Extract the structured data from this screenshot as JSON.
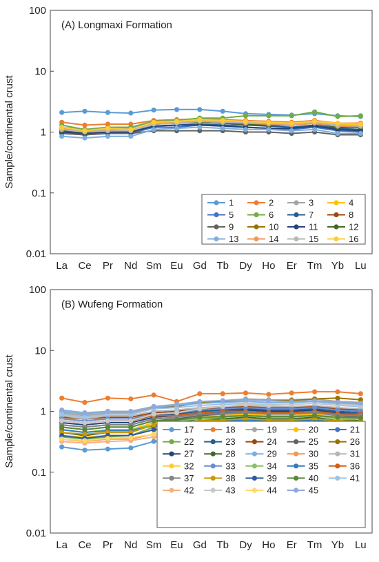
{
  "chart_data": [
    {
      "type": "line",
      "title": "(A) Longmaxi Formation",
      "ylabel": "Sample/continental crust",
      "xlabel": "",
      "yscale": "log",
      "ylim": [
        0.01,
        100
      ],
      "ytick_labels": [
        "0.01",
        "0.1",
        "1",
        "10",
        "100"
      ],
      "categories": [
        "La",
        "Ce",
        "Pr",
        "Nd",
        "Sm",
        "Eu",
        "Gd",
        "Tb",
        "Dy",
        "Ho",
        "Er",
        "Tm",
        "Yb",
        "Lu"
      ],
      "legend_placement": "lower-right",
      "series": [
        {
          "name": "1",
          "color": "#5b9bd5",
          "values": [
            2.1,
            2.2,
            2.1,
            2.05,
            2.3,
            2.35,
            2.35,
            2.2,
            2.0,
            1.95,
            1.9,
            2.0,
            1.85,
            1.8
          ]
        },
        {
          "name": "2",
          "color": "#ed7d31",
          "values": [
            1.45,
            1.3,
            1.35,
            1.35,
            1.55,
            1.6,
            1.65,
            1.6,
            1.55,
            1.5,
            1.45,
            1.55,
            1.4,
            1.4
          ]
        },
        {
          "name": "3",
          "color": "#a5a5a5",
          "values": [
            1.2,
            1.1,
            1.15,
            1.15,
            1.4,
            1.45,
            1.55,
            1.5,
            1.45,
            1.4,
            1.35,
            1.45,
            1.3,
            1.3
          ]
        },
        {
          "name": "4",
          "color": "#ffc000",
          "values": [
            1.1,
            1.05,
            1.1,
            1.1,
            1.35,
            1.4,
            1.5,
            1.45,
            1.45,
            1.4,
            1.35,
            1.5,
            1.35,
            1.3
          ]
        },
        {
          "name": "5",
          "color": "#4472c4",
          "values": [
            0.95,
            0.9,
            0.95,
            0.95,
            1.2,
            1.2,
            1.3,
            1.25,
            1.2,
            1.15,
            1.1,
            1.2,
            1.05,
            1.0
          ]
        },
        {
          "name": "6",
          "color": "#70ad47",
          "values": [
            1.3,
            1.1,
            1.2,
            1.2,
            1.5,
            1.55,
            1.7,
            1.7,
            1.85,
            1.85,
            1.85,
            2.15,
            1.8,
            1.85
          ]
        },
        {
          "name": "7",
          "color": "#255e91",
          "values": [
            1.0,
            0.95,
            1.0,
            1.0,
            1.25,
            1.3,
            1.35,
            1.3,
            1.3,
            1.25,
            1.2,
            1.3,
            1.15,
            1.1
          ]
        },
        {
          "name": "8",
          "color": "#9e480e",
          "values": [
            1.05,
            1.0,
            1.05,
            1.05,
            1.35,
            1.4,
            1.45,
            1.4,
            1.35,
            1.3,
            1.3,
            1.4,
            1.25,
            1.2
          ]
        },
        {
          "name": "9",
          "color": "#636363",
          "values": [
            0.95,
            0.9,
            0.95,
            0.95,
            1.05,
            1.05,
            1.05,
            1.05,
            1.0,
            1.0,
            0.95,
            1.0,
            0.9,
            0.9
          ]
        },
        {
          "name": "10",
          "color": "#997300",
          "values": [
            1.0,
            1.0,
            1.05,
            1.05,
            1.4,
            1.45,
            1.5,
            1.45,
            1.4,
            1.35,
            1.3,
            1.4,
            1.25,
            1.2
          ]
        },
        {
          "name": "11",
          "color": "#264478",
          "values": [
            1.0,
            0.95,
            1.0,
            1.0,
            1.25,
            1.3,
            1.3,
            1.25,
            1.2,
            1.15,
            1.15,
            1.25,
            1.1,
            1.05
          ]
        },
        {
          "name": "12",
          "color": "#43682b",
          "values": [
            1.05,
            1.0,
            1.05,
            1.05,
            1.35,
            1.4,
            1.45,
            1.4,
            1.35,
            1.3,
            1.3,
            1.4,
            1.2,
            1.2
          ]
        },
        {
          "name": "13",
          "color": "#7cafdd",
          "values": [
            0.85,
            0.8,
            0.85,
            0.85,
            1.1,
            1.15,
            1.2,
            1.15,
            1.1,
            1.1,
            1.05,
            1.1,
            0.95,
            0.95
          ]
        },
        {
          "name": "14",
          "color": "#f1975a",
          "values": [
            1.15,
            1.05,
            1.1,
            1.1,
            1.4,
            1.45,
            1.5,
            1.45,
            1.4,
            1.35,
            1.3,
            1.4,
            1.25,
            1.25
          ]
        },
        {
          "name": "15",
          "color": "#b7b7b7",
          "values": [
            1.1,
            1.0,
            1.05,
            1.05,
            1.35,
            1.4,
            1.5,
            1.45,
            1.45,
            1.4,
            1.35,
            1.45,
            1.3,
            1.25
          ]
        },
        {
          "name": "16",
          "color": "#ffcd33",
          "values": [
            1.2,
            1.05,
            1.15,
            1.1,
            1.45,
            1.5,
            1.6,
            1.55,
            1.5,
            1.45,
            1.4,
            1.5,
            1.4,
            1.35
          ]
        }
      ]
    },
    {
      "type": "line",
      "title": "(B) Wufeng Formation",
      "ylabel": "Sample/continental crust",
      "xlabel": "",
      "yscale": "log",
      "ylim": [
        0.01,
        100
      ],
      "ytick_labels": [
        "0.01",
        "0.1",
        "1",
        "10",
        "100"
      ],
      "categories": [
        "La",
        "Ce",
        "Pr",
        "Nd",
        "Sm",
        "Eu",
        "Gd",
        "Tb",
        "Dy",
        "Ho",
        "Er",
        "Tm",
        "Yb",
        "Lu"
      ],
      "legend_placement": "lower-right",
      "series": [
        {
          "name": "17",
          "color": "#5b9bd5",
          "values": [
            0.26,
            0.23,
            0.24,
            0.25,
            0.32,
            0.36,
            0.4,
            0.39,
            0.37,
            0.35,
            0.35,
            0.36,
            0.33,
            0.33
          ]
        },
        {
          "name": "18",
          "color": "#ed7d31",
          "values": [
            1.65,
            1.4,
            1.65,
            1.6,
            1.85,
            1.45,
            1.95,
            1.95,
            2.0,
            1.9,
            2.0,
            2.1,
            2.1,
            1.95
          ]
        },
        {
          "name": "19",
          "color": "#a5a5a5",
          "values": [
            0.95,
            0.85,
            0.95,
            0.95,
            1.15,
            1.2,
            1.4,
            1.5,
            1.6,
            1.55,
            1.55,
            1.6,
            1.45,
            1.4
          ]
        },
        {
          "name": "20",
          "color": "#ffc000",
          "values": [
            0.5,
            0.45,
            0.5,
            0.5,
            0.65,
            0.7,
            0.8,
            0.85,
            0.9,
            0.85,
            0.85,
            0.9,
            0.8,
            0.75
          ]
        },
        {
          "name": "21",
          "color": "#4472c4",
          "values": [
            0.6,
            0.55,
            0.6,
            0.6,
            0.75,
            0.8,
            0.9,
            0.95,
            1.0,
            0.95,
            0.95,
            1.0,
            0.9,
            0.85
          ]
        },
        {
          "name": "22",
          "color": "#70ad47",
          "values": [
            0.38,
            0.35,
            0.38,
            0.4,
            0.55,
            0.65,
            0.75,
            0.8,
            0.85,
            0.8,
            0.8,
            0.85,
            0.75,
            0.7
          ]
        },
        {
          "name": "23",
          "color": "#255e91",
          "values": [
            0.7,
            0.65,
            0.7,
            0.7,
            0.85,
            0.9,
            1.0,
            1.05,
            1.1,
            1.05,
            1.05,
            1.1,
            1.0,
            0.95
          ]
        },
        {
          "name": "24",
          "color": "#9e480e",
          "values": [
            0.8,
            0.75,
            0.8,
            0.8,
            0.95,
            1.0,
            1.1,
            1.15,
            1.2,
            1.15,
            1.15,
            1.2,
            1.1,
            1.05
          ]
        },
        {
          "name": "25",
          "color": "#636363",
          "values": [
            0.55,
            0.5,
            0.55,
            0.55,
            0.7,
            0.75,
            0.85,
            0.9,
            0.95,
            0.9,
            0.9,
            0.95,
            0.85,
            0.8
          ]
        },
        {
          "name": "26",
          "color": "#997300",
          "values": [
            0.9,
            0.8,
            0.9,
            0.9,
            1.1,
            1.2,
            1.4,
            1.45,
            1.55,
            1.5,
            1.5,
            1.6,
            1.65,
            1.55
          ]
        },
        {
          "name": "27",
          "color": "#264478",
          "values": [
            0.65,
            0.6,
            0.65,
            0.65,
            0.8,
            0.85,
            0.95,
            1.0,
            1.05,
            1.0,
            1.0,
            1.05,
            0.95,
            0.9
          ]
        },
        {
          "name": "28",
          "color": "#43682b",
          "values": [
            0.45,
            0.4,
            0.45,
            0.45,
            0.6,
            0.65,
            0.75,
            0.75,
            0.8,
            0.75,
            0.75,
            0.8,
            0.7,
            0.7
          ]
        },
        {
          "name": "29",
          "color": "#7cafdd",
          "values": [
            1.0,
            0.9,
            1.0,
            1.0,
            1.2,
            1.25,
            1.35,
            1.4,
            1.45,
            1.4,
            1.4,
            1.45,
            1.35,
            1.3
          ]
        },
        {
          "name": "30",
          "color": "#f1975a",
          "values": [
            0.35,
            0.32,
            0.35,
            0.35,
            0.42,
            0.45,
            0.48,
            0.48,
            0.48,
            0.45,
            0.48,
            0.5,
            0.48,
            0.45
          ]
        },
        {
          "name": "31",
          "color": "#b7b7b7",
          "values": [
            0.85,
            0.75,
            0.85,
            0.85,
            1.0,
            1.05,
            1.15,
            1.2,
            1.25,
            1.2,
            1.2,
            1.25,
            1.15,
            1.1
          ]
        },
        {
          "name": "32",
          "color": "#ffcd33",
          "values": [
            0.4,
            0.38,
            0.4,
            0.4,
            0.5,
            0.55,
            0.6,
            0.6,
            0.65,
            0.6,
            0.6,
            0.65,
            0.6,
            0.55
          ]
        },
        {
          "name": "33",
          "color": "#698ed0",
          "values": [
            0.75,
            0.7,
            0.75,
            0.75,
            0.9,
            0.95,
            1.05,
            1.1,
            1.15,
            1.1,
            1.1,
            1.15,
            1.05,
            1.0
          ]
        },
        {
          "name": "34",
          "color": "#8cc168",
          "values": [
            0.5,
            0.45,
            0.5,
            0.5,
            0.6,
            0.7,
            0.75,
            0.8,
            0.85,
            0.8,
            0.8,
            0.85,
            0.75,
            0.75
          ]
        },
        {
          "name": "35",
          "color": "#327dc2",
          "values": [
            0.5,
            0.45,
            0.48,
            0.48,
            0.58,
            0.62,
            0.68,
            0.7,
            0.72,
            0.7,
            0.7,
            0.72,
            0.66,
            0.64
          ]
        },
        {
          "name": "36",
          "color": "#d26012",
          "values": [
            0.7,
            0.65,
            0.7,
            0.7,
            0.85,
            0.85,
            0.95,
            1.0,
            1.0,
            0.95,
            0.95,
            1.0,
            0.9,
            0.9
          ]
        },
        {
          "name": "37",
          "color": "#848484",
          "values": [
            0.6,
            0.55,
            0.6,
            0.6,
            0.75,
            0.8,
            0.9,
            0.9,
            0.95,
            0.9,
            0.9,
            0.95,
            0.85,
            0.85
          ]
        },
        {
          "name": "38",
          "color": "#cc9a00",
          "values": [
            0.45,
            0.42,
            0.45,
            0.45,
            0.6,
            0.62,
            0.7,
            0.72,
            0.75,
            0.72,
            0.72,
            0.75,
            0.7,
            0.68
          ]
        },
        {
          "name": "39",
          "color": "#335aa1",
          "values": [
            0.4,
            0.36,
            0.4,
            0.4,
            0.5,
            0.55,
            0.6,
            0.62,
            0.65,
            0.62,
            0.62,
            0.65,
            0.6,
            0.58
          ]
        },
        {
          "name": "40",
          "color": "#5a8a39",
          "values": [
            0.55,
            0.5,
            0.55,
            0.55,
            0.7,
            0.72,
            0.8,
            0.82,
            0.85,
            0.82,
            0.82,
            0.85,
            0.8,
            0.78
          ]
        },
        {
          "name": "41",
          "color": "#9dc3e6",
          "values": [
            0.9,
            0.8,
            0.9,
            0.9,
            1.1,
            1.15,
            1.25,
            1.3,
            1.35,
            1.3,
            1.3,
            1.35,
            1.25,
            1.2
          ]
        },
        {
          "name": "42",
          "color": "#f4b183",
          "values": [
            0.32,
            0.3,
            0.32,
            0.33,
            0.38,
            0.4,
            0.42,
            0.44,
            0.46,
            0.45,
            0.48,
            0.55,
            0.55,
            0.52
          ]
        },
        {
          "name": "43",
          "color": "#c9c9c9",
          "values": [
            0.7,
            0.65,
            0.7,
            0.7,
            0.9,
            0.95,
            1.1,
            1.2,
            1.3,
            1.25,
            1.3,
            1.35,
            1.3,
            1.25
          ]
        },
        {
          "name": "44",
          "color": "#ffd966",
          "values": [
            0.35,
            0.33,
            0.36,
            0.37,
            0.42,
            0.44,
            0.46,
            0.45,
            0.44,
            0.42,
            0.42,
            0.45,
            0.42,
            0.4
          ]
        },
        {
          "name": "45",
          "color": "#8faadc",
          "values": [
            1.05,
            0.95,
            1.0,
            1.0,
            1.2,
            1.3,
            1.45,
            1.5,
            1.55,
            1.5,
            1.45,
            1.5,
            1.4,
            1.35
          ]
        }
      ]
    }
  ]
}
